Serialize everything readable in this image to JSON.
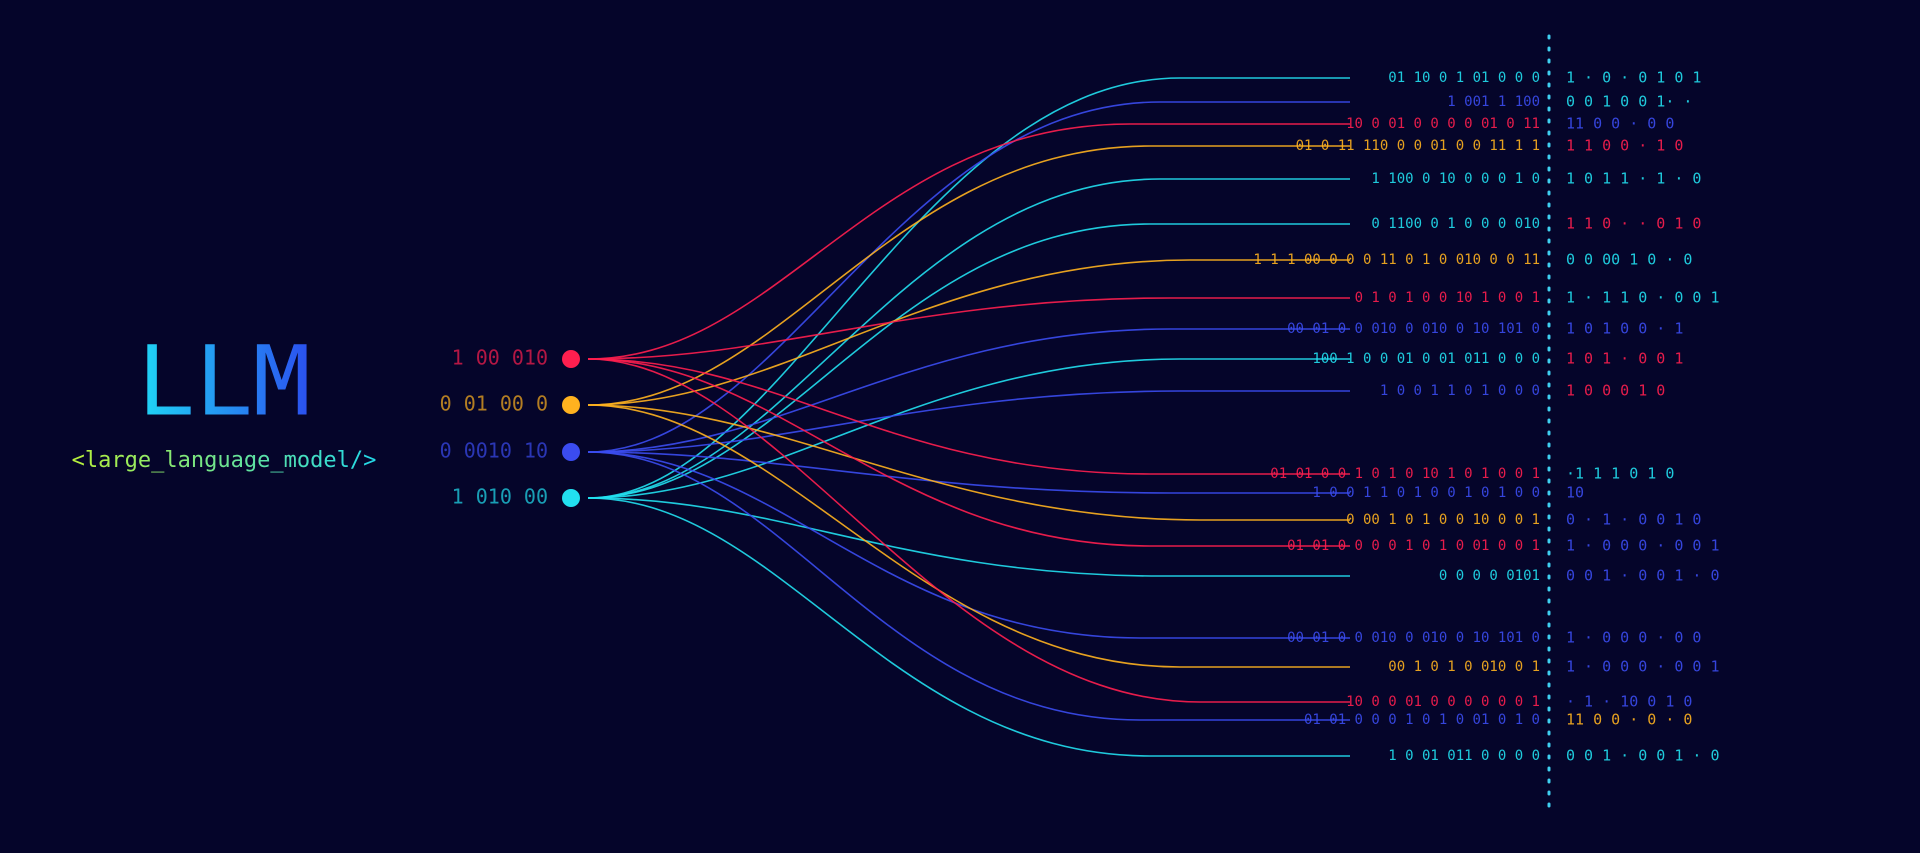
{
  "title": "LLM",
  "subtitle": "<large_language_model/>",
  "inputs": [
    {
      "label": "1 00  010"
    },
    {
      "label": "0 01  00 0"
    },
    {
      "label": "0 0010 10"
    },
    {
      "label": "1 010 00"
    }
  ],
  "streams": [
    {
      "left": "01 10 0 1 01 0 0   0",
      "right": "1 ·   0 ·   0 1  0  1"
    },
    {
      "left": "1 001 1 100",
      "right": "0  0 1 0   0   1· ·"
    },
    {
      "left": "10 0  01  0 0 0 0  01 0  11",
      "right": "11 0 0   ·   0 0"
    },
    {
      "left": "01 0 11  110 0 0 01 0 0 11 1 1",
      "right": "1 1   0   0  · 1  0"
    },
    {
      "left": "1  100 0 10 0 0 0 1 0",
      "right": "1 0 1  1   · 1  · 0"
    },
    {
      "left": "0  1100 0 1 0 0 0 010",
      "right": "1 1 0 ·  · 0   1 0"
    },
    {
      "left": "1 1 1 00 0 0 0 11 0 1 0 010 0 0 11",
      "right": "0  0 00  1  0  · 0"
    },
    {
      "left": "0 1 0 1 0 0  10 1  0 0 1",
      "right": "1 · 1 1 0 ·  0   0 1"
    },
    {
      "left": "00 01 0  0 010 0 010 0 10 101 0",
      "right": "1  0 1 0    0 · 1"
    },
    {
      "left": "100 1 0 0  01 0 01 011 0 0 0",
      "right": "1  0  1 · 0 0 1"
    },
    {
      "left": "1 0 0 1 1 0 1 0 0 0",
      "right": "1  0 0  0  1  0"
    },
    {
      "left": "01 01 0 0 1 0 1 0 10 1 0 1 0 0 1",
      "right": "·1 1  1   0  1   0"
    },
    {
      "left": "1 0 0 1 1 0 1 0 0 1 0 1 0 0",
      "right": "10"
    },
    {
      "left": "0 00 1 0 1 0 0 10 0 0 1",
      "right": "0 · 1  · 0  0 1  0"
    },
    {
      "left": "01 01 0 0 0 0 1 0 1 0 01  0  0 1",
      "right": "1 · 0 0  0 · 0 0 1"
    },
    {
      "left": "0 0 0  0 0101",
      "right": "0  0  1 · 0 0 1 ·   0"
    },
    {
      "left": "00 01 0 0 010 0 010 0 10 101 0",
      "right": "1 ·  0 0   0   · 0   0"
    },
    {
      "left": "00 1 0 1 0 010 0 1",
      "right": "1 ·  0 0  0 ·  0 0  1"
    },
    {
      "left": "10 0 0 01  0 0 0  0 0  0 1",
      "right": "· 1 · 10  0  1 0"
    },
    {
      "left": "01 01 0 0 0 1 0 1 0 01  0  1 0",
      "right": "11 0  0  ·  0 · 0"
    },
    {
      "left": "1 0 01 011 0 0 0 0",
      "right": "0  0  1 · 0 0 1 ·   0"
    }
  ]
}
